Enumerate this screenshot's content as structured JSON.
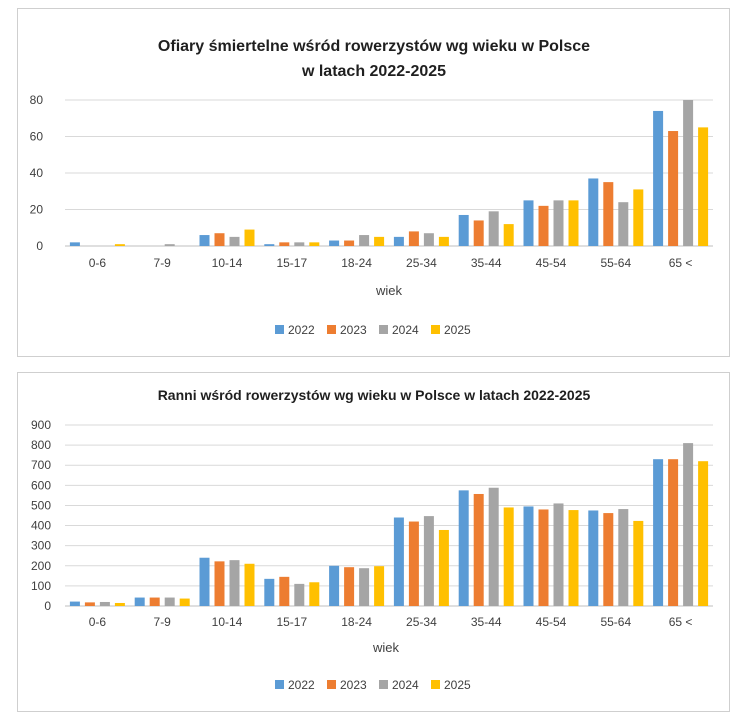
{
  "chart_data": [
    {
      "type": "bar",
      "title_lines": [
        "Ofiary śmiertelne wśród rowerzystów wg wieku w Polsce",
        "w latach 2022-2025"
      ],
      "xlabel": "wiek",
      "ylabel": "",
      "ylim": [
        0,
        80
      ],
      "yticks": [
        0,
        20,
        40,
        60,
        80
      ],
      "grid": true,
      "legend_position": "bottom",
      "categories": [
        "0-6",
        "7-9",
        "10-14",
        "15-17",
        "18-24",
        "25-34",
        "35-44",
        "45-54",
        "55-64",
        "65 <"
      ],
      "series": [
        {
          "name": "2022",
          "color": "#5b9bd5",
          "values": [
            2,
            0,
            6,
            1,
            3,
            5,
            17,
            25,
            37,
            74
          ]
        },
        {
          "name": "2023",
          "color": "#ed7d31",
          "values": [
            0,
            0,
            7,
            2,
            3,
            8,
            14,
            22,
            35,
            63
          ]
        },
        {
          "name": "2024",
          "color": "#a5a5a5",
          "values": [
            0,
            1,
            5,
            2,
            6,
            7,
            19,
            25,
            24,
            80
          ]
        },
        {
          "name": "2025",
          "color": "#ffc000",
          "values": [
            1,
            0,
            9,
            2,
            5,
            5,
            12,
            25,
            31,
            65
          ]
        }
      ]
    },
    {
      "type": "bar",
      "title_lines": [
        "Ranni wśród rowerzystów wg wieku w Polsce w latach 2022-2025"
      ],
      "xlabel": "wiek",
      "ylabel": "",
      "ylim": [
        0,
        900
      ],
      "yticks": [
        0,
        100,
        200,
        300,
        400,
        500,
        600,
        700,
        800,
        900
      ],
      "grid": true,
      "legend_position": "bottom",
      "categories": [
        "0-6",
        "7-9",
        "10-14",
        "15-17",
        "18-24",
        "25-34",
        "35-44",
        "45-54",
        "55-64",
        "65 <"
      ],
      "series": [
        {
          "name": "2022",
          "color": "#5b9bd5",
          "values": [
            22,
            42,
            240,
            135,
            200,
            440,
            575,
            495,
            475,
            730
          ]
        },
        {
          "name": "2023",
          "color": "#ed7d31",
          "values": [
            18,
            42,
            222,
            145,
            193,
            420,
            557,
            480,
            462,
            730
          ]
        },
        {
          "name": "2024",
          "color": "#a5a5a5",
          "values": [
            20,
            42,
            228,
            110,
            188,
            447,
            588,
            510,
            482,
            810
          ]
        },
        {
          "name": "2025",
          "color": "#ffc000",
          "values": [
            15,
            37,
            210,
            118,
            198,
            378,
            490,
            477,
            423,
            720
          ]
        }
      ]
    }
  ]
}
